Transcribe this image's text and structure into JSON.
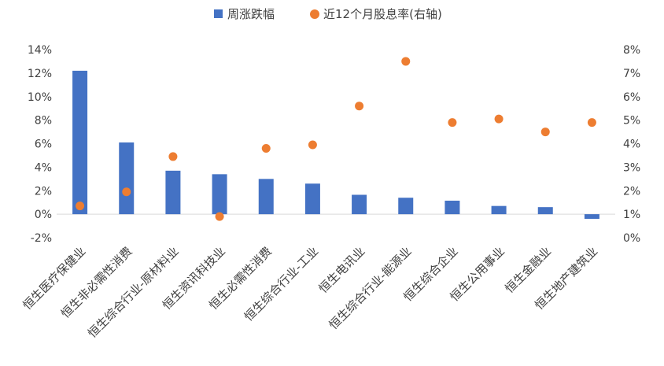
{
  "chart_data": {
    "type": "bar",
    "categories": [
      "恒生医疗保健业",
      "恒生非必需性消费",
      "恒生综合行业-原材料业",
      "恒生资讯科技业",
      "恒生必需性消费",
      "恒生综合行业-工业",
      "恒生电讯业",
      "恒生综合行业-能源业",
      "恒生综合企业",
      "恒生公用事业",
      "恒生金融业",
      "恒生地产建筑业"
    ],
    "series": [
      {
        "name": "周涨跌幅",
        "type": "bar",
        "axis": "left",
        "color": "#4472C4",
        "values": [
          12.2,
          6.1,
          3.7,
          3.4,
          3.0,
          2.6,
          1.65,
          1.4,
          1.15,
          0.7,
          0.6,
          -0.4
        ]
      },
      {
        "name": "近12个月股息率(右轴)",
        "type": "scatter",
        "axis": "right",
        "color": "#ED7D31",
        "values": [
          1.35,
          1.95,
          3.45,
          0.9,
          3.8,
          3.95,
          5.6,
          7.5,
          4.9,
          5.05,
          4.5,
          4.9
        ]
      }
    ],
    "y_left": {
      "min": -2,
      "max": 14,
      "step": 2,
      "unit": "%"
    },
    "y_right": {
      "min": 0,
      "max": 8,
      "step": 1,
      "unit": "%"
    },
    "legend_position": "top-center",
    "grid": false
  }
}
